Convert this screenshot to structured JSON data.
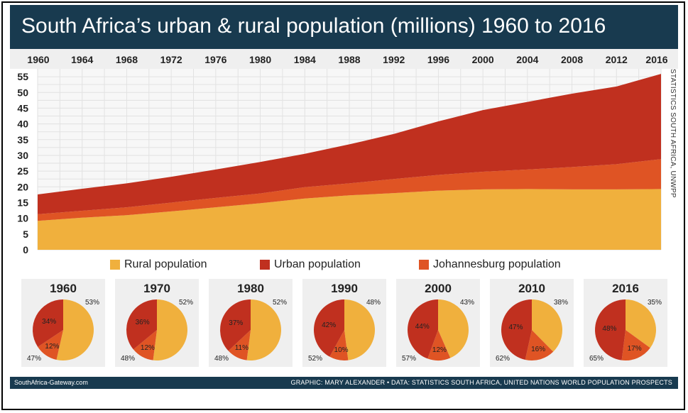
{
  "title": "South Africa’s urban & rural population (millions) 1960 to 2016",
  "colors": {
    "rural": "#f0b03d",
    "urban": "#c0301f",
    "johannesburg": "#df5424",
    "header": "#183a4f"
  },
  "source_vertical": "STATISTICS SOUTH AFRICA, UNWPP",
  "legend": [
    {
      "label": "Rural population",
      "color": "#f0b03d"
    },
    {
      "label": "Urban population",
      "color": "#c0301f"
    },
    {
      "label": "Johannesburg population",
      "color": "#df5424"
    }
  ],
  "chart_data": [
    {
      "type": "area",
      "stacked": true,
      "x_ticks": [
        "1960",
        "1964",
        "1968",
        "1972",
        "1976",
        "1980",
        "1984",
        "1988",
        "1992",
        "1996",
        "2000",
        "2004",
        "2008",
        "2012",
        "2016"
      ],
      "y_ticks": [
        "0",
        "5",
        "10",
        "15",
        "20",
        "25",
        "30",
        "35",
        "40",
        "45",
        "50",
        "55"
      ],
      "ylim": [
        0,
        57.5
      ],
      "xlim": [
        1960,
        2016
      ],
      "grid": true,
      "x": [
        1960,
        1964,
        1968,
        1972,
        1976,
        1980,
        1984,
        1988,
        1992,
        1996,
        2000,
        2004,
        2008,
        2012,
        2016
      ],
      "series": [
        {
          "name": "Rural population",
          "values": [
            9.2,
            10.2,
            11.0,
            12.2,
            13.5,
            14.8,
            16.3,
            17.3,
            18.0,
            18.8,
            19.2,
            19.3,
            19.2,
            19.2,
            19.3
          ]
        },
        {
          "name": "Johannesburg population",
          "values": [
            2.1,
            2.2,
            2.5,
            2.8,
            3.0,
            3.1,
            3.6,
            3.8,
            4.5,
            5.0,
            5.6,
            6.2,
            7.1,
            8.0,
            9.5
          ]
        },
        {
          "name": "Urban population",
          "values": [
            6.3,
            7.0,
            7.6,
            8.2,
            9.0,
            10.0,
            10.6,
            12.4,
            14.3,
            17.0,
            19.6,
            21.5,
            23.3,
            24.7,
            27.1
          ]
        }
      ]
    },
    {
      "type": "pie",
      "title": "1960",
      "slices": [
        {
          "label": "53%",
          "value": 53
        },
        {
          "label": "12%",
          "value": 12
        },
        {
          "label": "34%",
          "value": 34
        }
      ],
      "outside_label": "47%"
    },
    {
      "type": "pie",
      "title": "1970",
      "slices": [
        {
          "label": "52%",
          "value": 52
        },
        {
          "label": "12%",
          "value": 12
        },
        {
          "label": "36%",
          "value": 36
        }
      ],
      "outside_label": "48%"
    },
    {
      "type": "pie",
      "title": "1980",
      "slices": [
        {
          "label": "52%",
          "value": 52
        },
        {
          "label": "11%",
          "value": 11
        },
        {
          "label": "37%",
          "value": 37
        }
      ],
      "outside_label": "48%"
    },
    {
      "type": "pie",
      "title": "1990",
      "slices": [
        {
          "label": "48%",
          "value": 48
        },
        {
          "label": "10%",
          "value": 10
        },
        {
          "label": "42%",
          "value": 42
        }
      ],
      "outside_label": "52%"
    },
    {
      "type": "pie",
      "title": "2000",
      "slices": [
        {
          "label": "43%",
          "value": 43
        },
        {
          "label": "12%",
          "value": 12
        },
        {
          "label": "44%",
          "value": 44
        }
      ],
      "outside_label": "57%"
    },
    {
      "type": "pie",
      "title": "2010",
      "slices": [
        {
          "label": "38%",
          "value": 38
        },
        {
          "label": "16%",
          "value": 16
        },
        {
          "label": "47%",
          "value": 47
        }
      ],
      "outside_label": "62%"
    },
    {
      "type": "pie",
      "title": "2016",
      "slices": [
        {
          "label": "35%",
          "value": 35
        },
        {
          "label": "17%",
          "value": 17
        },
        {
          "label": "48%",
          "value": 48
        }
      ],
      "outside_label": "65%"
    }
  ],
  "footer": {
    "left": "SouthAfrica-Gateway.com",
    "right": "GRAPHIC: MARY ALEXANDER • DATA: STATISTICS SOUTH AFRICA, UNITED NATIONS WORLD POPULATION PROSPECTS"
  }
}
